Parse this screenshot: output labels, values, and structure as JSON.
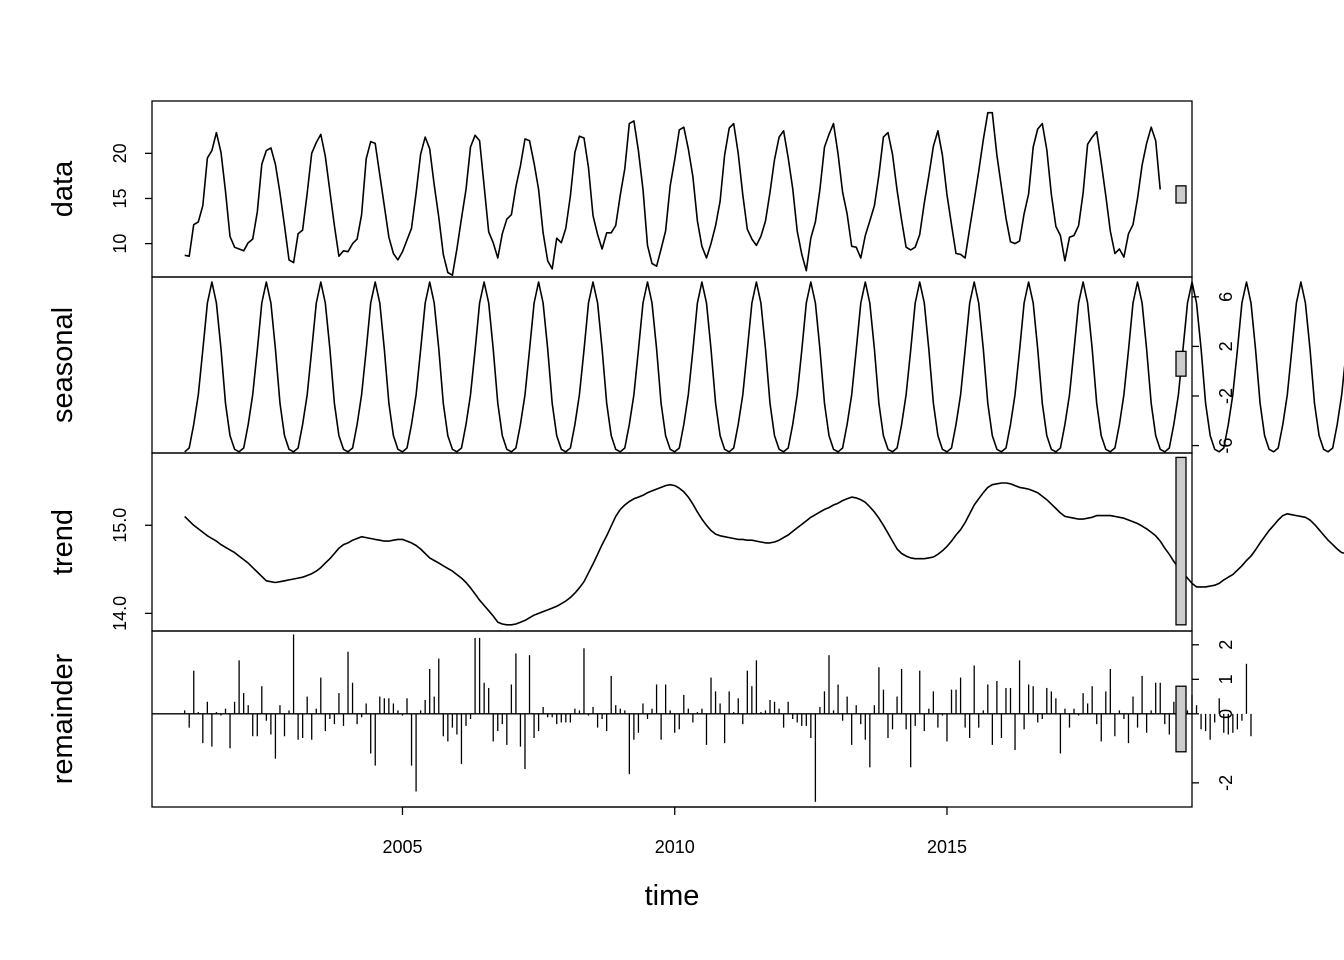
{
  "chart_data": {
    "type": "line",
    "xlabel": "time",
    "x_ticks": [
      "2005",
      "2010",
      "2015"
    ],
    "x_tick_values": [
      2005,
      2010,
      2015
    ],
    "xlim": [
      2000.4,
      2019.5
    ],
    "start": 2001.0,
    "frequency": 12,
    "panels": [
      {
        "name": "data",
        "label": "data",
        "style": "line",
        "ylim": [
          6.3,
          25.8
        ],
        "yticks": [
          10,
          15,
          20
        ],
        "ytick_labels": [
          "10",
          "15",
          "20"
        ],
        "ytick_side": "left",
        "bar_range": [
          14.5,
          16.4
        ]
      },
      {
        "name": "seasonal",
        "label": "seasonal",
        "style": "line",
        "ylim": [
          -6.6,
          7.6
        ],
        "yticks": [
          -6,
          -2,
          2,
          6
        ],
        "ytick_labels": [
          "-6",
          "-2",
          "2",
          "6"
        ],
        "ytick_side": "right",
        "bar_range": [
          -0.4,
          1.6
        ]
      },
      {
        "name": "trend",
        "label": "trend",
        "style": "line",
        "ylim": [
          13.8,
          15.82
        ],
        "yticks": [
          14.0,
          15.0
        ],
        "ytick_labels": [
          "14.0",
          "15.0"
        ],
        "ytick_side": "left",
        "bar_range": [
          13.87,
          15.77
        ]
      },
      {
        "name": "remainder",
        "label": "remainder",
        "style": "hist",
        "ylim": [
          -2.7,
          2.4
        ],
        "yticks": [
          -2,
          0,
          1,
          2
        ],
        "ytick_labels": [
          "-2",
          "0",
          "1",
          "2"
        ],
        "ytick_side": "right",
        "bar_range": [
          -1.1,
          0.8
        ]
      }
    ],
    "seasonal_cycle": [
      -6.5,
      -6.2,
      -4.3,
      -1.9,
      1.7,
      5.5,
      7.2,
      5.5,
      1.8,
      -2.6,
      -5.2,
      -6.3
    ],
    "trend": [
      15.1,
      15.05,
      15.0,
      14.96,
      14.92,
      14.88,
      14.85,
      14.82,
      14.78,
      14.75,
      14.72,
      14.69,
      14.65,
      14.61,
      14.57,
      14.52,
      14.47,
      14.42,
      14.37,
      14.36,
      14.35,
      14.36,
      14.37,
      14.38,
      14.39,
      14.4,
      14.41,
      14.43,
      14.45,
      14.48,
      14.52,
      14.57,
      14.62,
      14.68,
      14.74,
      14.78,
      14.8,
      14.83,
      14.85,
      14.87,
      14.86,
      14.85,
      14.84,
      14.83,
      14.82,
      14.82,
      14.83,
      14.84,
      14.84,
      14.82,
      14.8,
      14.77,
      14.73,
      14.68,
      14.63,
      14.6,
      14.57,
      14.54,
      14.51,
      14.48,
      14.44,
      14.4,
      14.35,
      14.29,
      14.22,
      14.15,
      14.09,
      14.03,
      13.97,
      13.9,
      13.88,
      13.87,
      13.87,
      13.88,
      13.9,
      13.92,
      13.95,
      13.98,
      14.0,
      14.02,
      14.04,
      14.06,
      14.08,
      14.11,
      14.14,
      14.18,
      14.23,
      14.29,
      14.36,
      14.46,
      14.56,
      14.67,
      14.78,
      14.88,
      14.99,
      15.1,
      15.18,
      15.23,
      15.27,
      15.3,
      15.32,
      15.34,
      15.37,
      15.39,
      15.41,
      15.43,
      15.45,
      15.46,
      15.45,
      15.42,
      15.38,
      15.32,
      15.24,
      15.15,
      15.07,
      15.0,
      14.94,
      14.9,
      14.88,
      14.87,
      14.86,
      14.85,
      14.84,
      14.84,
      14.83,
      14.83,
      14.82,
      14.81,
      14.8,
      14.8,
      14.81,
      14.83,
      14.86,
      14.89,
      14.93,
      14.97,
      15.01,
      15.05,
      15.09,
      15.12,
      15.15,
      15.18,
      15.2,
      15.23,
      15.25,
      15.28,
      15.3,
      15.32,
      15.31,
      15.29,
      15.26,
      15.21,
      15.15,
      15.08,
      15.0,
      14.91,
      14.82,
      14.73,
      14.68,
      14.65,
      14.63,
      14.62,
      14.62,
      14.62,
      14.63,
      14.64,
      14.67,
      14.71,
      14.76,
      14.82,
      14.89,
      14.95,
      15.03,
      15.13,
      15.23,
      15.3,
      15.37,
      15.43,
      15.46,
      15.47,
      15.48,
      15.48,
      15.47,
      15.45,
      15.43,
      15.42,
      15.41,
      15.39,
      15.37,
      15.33,
      15.29,
      15.24,
      15.19,
      15.14,
      15.1,
      15.09,
      15.08,
      15.07,
      15.07,
      15.08,
      15.09,
      15.11,
      15.11,
      15.11,
      15.11,
      15.1,
      15.09,
      15.08,
      15.06,
      15.04,
      15.02,
      14.99,
      14.96,
      14.92,
      14.88,
      14.82,
      14.74,
      14.67,
      14.59,
      14.52,
      14.46,
      14.4,
      14.34,
      14.3,
      14.3,
      14.3,
      14.31,
      14.32,
      14.34,
      14.38,
      14.41,
      14.44,
      14.49,
      14.54,
      14.6,
      14.65,
      14.72,
      14.8,
      14.87,
      14.94,
      15.0,
      15.06,
      15.11,
      15.13,
      15.12,
      15.11,
      15.1,
      15.09,
      15.06,
      15.01,
      14.95,
      14.89,
      14.83,
      14.78,
      14.73,
      14.69,
      14.68,
      14.68,
      14.67,
      14.66,
      14.66,
      14.67,
      14.68,
      14.69,
      14.72,
      14.75,
      14.79,
      14.84,
      14.91,
      14.99,
      15.06,
      15.13,
      15.21,
      15.27,
      15.3,
      15.33,
      15.36,
      15.38,
      15.39,
      15.4,
      15.41,
      15.42,
      15.41,
      15.4,
      15.39,
      15.37,
      15.35,
      15.33,
      15.31,
      15.3,
      15.29,
      15.29,
      15.31,
      15.33,
      15.35,
      15.37,
      15.39,
      15.42,
      15.44,
      15.46,
      15.47,
      15.49,
      15.51,
      15.54,
      15.57,
      15.6,
      15.65,
      15.68,
      15.71,
      15.73,
      15.72,
      15.7,
      15.68,
      15.65,
      15.62,
      15.59,
      15.56,
      15.54,
      15.52,
      15.5,
      15.49,
      15.48,
      15.47,
      15.46,
      15.44,
      15.42,
      15.41,
      15.4,
      15.39,
      15.38,
      15.38,
      15.38,
      15.39,
      15.39,
      15.39,
      15.39,
      15.39,
      15.39,
      15.38,
      15.36,
      15.34,
      15.31,
      15.27,
      15.23,
      15.18,
      15.13,
      15.08,
      15.03,
      14.98,
      14.93,
      14.88,
      14.83,
      14.78,
      14.73,
      14.68,
      14.64,
      14.6,
      14.57,
      14.54,
      14.56,
      14.59,
      14.61,
      14.63,
      14.66,
      14.69,
      14.72,
      14.74,
      14.77,
      14.8,
      14.84,
      14.87,
      14.91,
      14.95,
      14.99,
      15.03
    ],
    "remainder": [
      0.1,
      -0.4,
      1.25,
      0.05,
      -0.85,
      0.35,
      -0.95,
      0.05,
      -0.05,
      0.15,
      -1.0,
      0.35,
      1.55,
      0.6,
      0.25,
      -0.65,
      -0.65,
      0.8,
      -0.2,
      -0.6,
      -1.3,
      0.25,
      -0.65,
      0.1,
      2.3,
      -0.75,
      -0.7,
      0.5,
      -0.75,
      0.15,
      1.05,
      -0.5,
      -0.15,
      -0.3,
      0.6,
      -0.35,
      1.8,
      0.9,
      -0.3,
      -0.1,
      0.3,
      -1.15,
      -1.5,
      0.5,
      0.45,
      0.45,
      0.3,
      0.1,
      -0.05,
      0.45,
      -1.5,
      -2.25,
      0.1,
      0.4,
      1.3,
      0.5,
      1.6,
      -0.65,
      -0.8,
      -0.4,
      -0.6,
      -1.45,
      -0.35,
      -0.15,
      2.2,
      2.2,
      0.9,
      0.75,
      -0.8,
      -0.5,
      -0.3,
      -0.9,
      0.85,
      1.75,
      -0.95,
      -1.6,
      1.7,
      -0.7,
      -0.5,
      0.2,
      -0.1,
      -0.1,
      -0.3,
      -0.25,
      -0.25,
      -0.25,
      0.15,
      0.1,
      1.9,
      -0.05,
      0.2,
      -0.4,
      -0.15,
      -0.5,
      1.1,
      0.25,
      0.15,
      0.1,
      -1.75,
      -0.75,
      -0.55,
      0.3,
      -0.15,
      0.15,
      0.85,
      -0.75,
      0.85,
      0.1,
      -0.55,
      -0.45,
      0.55,
      0.15,
      -0.25,
      0.05,
      0.15,
      -0.9,
      1.05,
      0.65,
      0.3,
      -0.85,
      0.65,
      0.05,
      0.45,
      -0.3,
      1.25,
      0.8,
      1.55,
      0.05,
      0.1,
      0.4,
      0.35,
      0.15,
      -0.4,
      0.35,
      -0.15,
      -0.25,
      -0.35,
      -0.35,
      -0.7,
      -2.55,
      0.2,
      0.65,
      1.7,
      0.1,
      0.85,
      -0.2,
      0.5,
      -0.9,
      0.25,
      -0.3,
      -0.75,
      -1.55,
      0.25,
      1.35,
      0.7,
      -0.7,
      -0.45,
      0.5,
      1.3,
      -0.45,
      -1.55,
      -0.35,
      1.25,
      -0.5,
      0.15,
      0.65,
      -0.4,
      -0.05,
      -0.8,
      0.7,
      0.7,
      1.05,
      -0.4,
      -0.7,
      1.4,
      -0.4,
      0.1,
      0.85,
      -0.9,
      0.95,
      -0.7,
      0.75,
      0.75,
      -1.05,
      1.55,
      -0.45,
      0.85,
      0.8,
      -0.25,
      -0.15,
      0.75,
      0.65,
      0.45,
      -1.15,
      0.15,
      -0.4,
      0.15,
      -0.05,
      0.6,
      0.3,
      0.8,
      -0.3,
      -0.8,
      0.65,
      1.3,
      -0.65,
      0.1,
      -0.15,
      -0.85,
      0.5,
      -0.4,
      1.1,
      -0.55,
      0.1,
      0.9,
      0.9,
      -0.3,
      -0.6,
      0.35,
      -0.6,
      -0.05,
      0.1,
      0.55,
      0.25,
      -0.45,
      -0.5,
      -0.75,
      -0.25,
      0.45,
      -0.55,
      -0.6,
      -0.55,
      -0.45,
      -0.2,
      1.45,
      -0.65
    ],
    "data_note_values": [
      8.7,
      8.6,
      12.1,
      12.4,
      14.2,
      19.5,
      20.3,
      22.3,
      20.1,
      15.8,
      10.8,
      9.6,
      9.4,
      9.2,
      10.1,
      10.5,
      13.5,
      18.8,
      20.3,
      20.6,
      18.8,
      15.6,
      12.0,
      8.2,
      7.9,
      11.1,
      11.5,
      15.6,
      20.0,
      21.2,
      22.1,
      19.7,
      15.8,
      12.0,
      8.6,
      9.2,
      9.1,
      10.0,
      10.5,
      13.2,
      19.4,
      21.3,
      21.1,
      17.6,
      14.2,
      10.7,
      8.9,
      8.2,
      9.1,
      10.4,
      11.7,
      15.6,
      19.9,
      21.8,
      20.5,
      16.5,
      12.9,
      8.8,
      6.8,
      6.5,
      9.4,
      12.8,
      16.0,
      20.7,
      22.0,
      21.4,
      16.4,
      11.3,
      10.1,
      8.4,
      11.1,
      12.7,
      13.2,
      16.3,
      18.6,
      21.6,
      21.4,
      18.9,
      16.0,
      11.2,
      8.1,
      7.2,
      10.6,
      10.1,
      11.7,
      15.3,
      20.1,
      21.9,
      21.7,
      18.4,
      13.1,
      11.0,
      9.4,
      11.2,
      11.2,
      12.0,
      15.4,
      18.3,
      23.3,
      23.6,
      20.3,
      16.0,
      9.8,
      7.8,
      7.5,
      9.4,
      11.4,
      16.4,
      19.3,
      22.6,
      22.9,
      20.5,
      17.4,
      12.5,
      9.7,
      8.4,
      10.0,
      12.0,
      14.7,
      19.8,
      22.8,
      23.3,
      20.0,
      15.4,
      11.6,
      10.5,
      9.8,
      10.8,
      12.5,
      15.7,
      19.3,
      21.8,
      22.5,
      19.5,
      16.1,
      11.4,
      8.8,
      7.0,
      10.6,
      12.4,
      16.0,
      20.7,
      22.1,
      23.3,
      19.9,
      15.7,
      13.3,
      9.7,
      9.6,
      8.4,
      10.9,
      12.5,
      14.2,
      17.6,
      21.8,
      22.3,
      19.9,
      15.9,
      12.6,
      9.6,
      9.3,
      9.6,
      11.0,
      14.5,
      17.5,
      20.8,
      22.5,
      19.8,
      15.4,
      12.1,
      8.9,
      8.8,
      8.4,
      11.7,
      14.8,
      18.0,
      21.5,
      24.5,
      24.5,
      19.8,
      16.3,
      12.8,
      10.2,
      10.0,
      10.3,
      13.3,
      15.5,
      20.7,
      22.7,
      23.3,
      20.4,
      15.5,
      11.9,
      10.9,
      8.1,
      10.7,
      10.9,
      12.0,
      15.6,
      21.0,
      21.8,
      22.4,
      19.0,
      15.3,
      11.4,
      8.9,
      9.4,
      8.5,
      11.1,
      12.1,
      15.0,
      18.7,
      21.1,
      22.9,
      21.4,
      16.0
    ]
  }
}
